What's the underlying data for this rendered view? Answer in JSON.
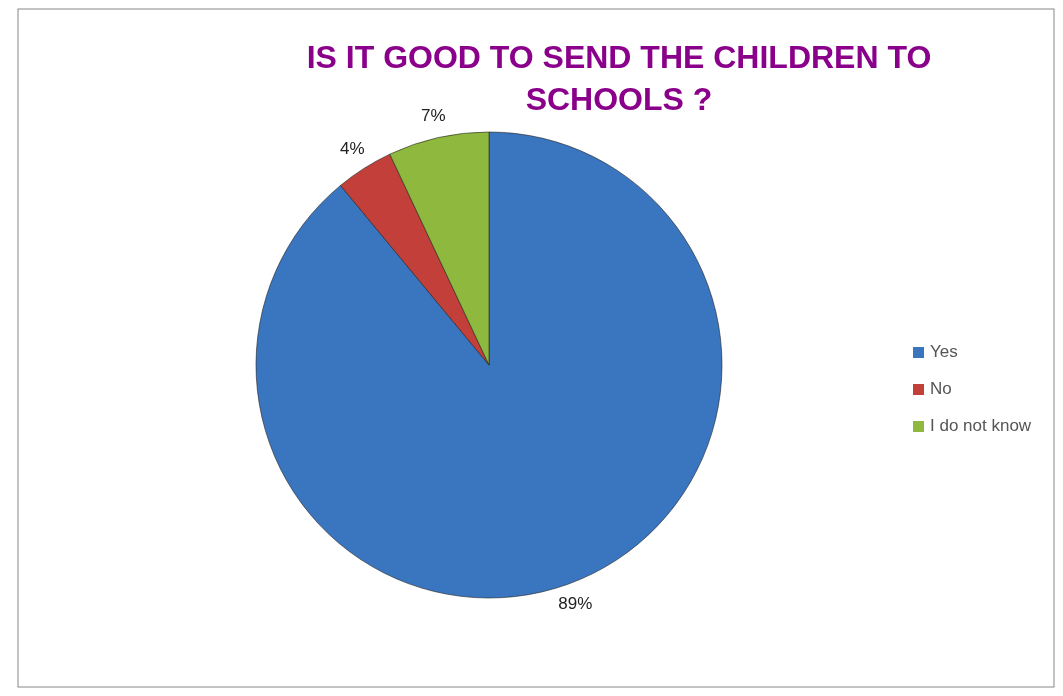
{
  "chart_data": {
    "type": "pie",
    "title": "IS IT GOOD TO SEND THE CHILDREN TO SCHOOLS ?",
    "categories": [
      "Yes",
      "No",
      "I do not know"
    ],
    "values": [
      89,
      4,
      7
    ],
    "colors": [
      "#3a76c0",
      "#c23f3a",
      "#8fb93e"
    ],
    "value_labels": [
      "89%",
      "4%",
      "7%"
    ],
    "legend": "right"
  }
}
